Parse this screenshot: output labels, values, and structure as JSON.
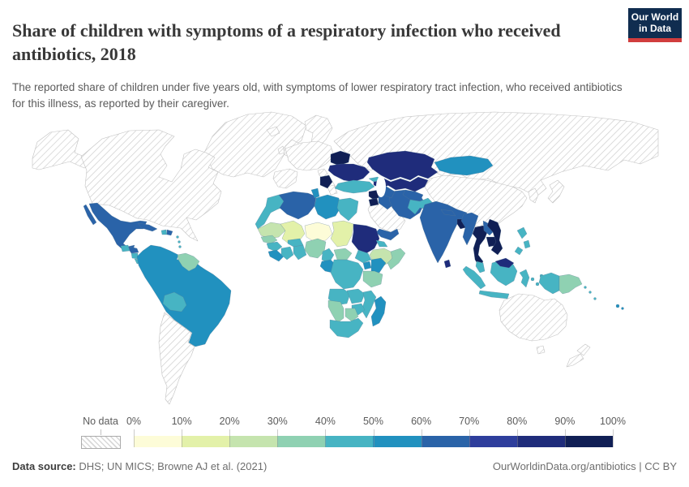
{
  "header": {
    "title": "Share of children with symptoms of a respiratory infection who received antibiotics, 2018",
    "subtitle": "The reported share of children under five years old, with symptoms of lower respiratory tract infection, who received antibiotics for this illness, as reported by their caregiver.",
    "logo": {
      "line1": "Our World",
      "line2": "in Data",
      "bg_color": "#102d50",
      "accent_color": "#d13d3d"
    }
  },
  "chart_data": {
    "type": "choropleth_map",
    "title": "Share of children with symptoms of a respiratory infection who received antibiotics",
    "year": "2018",
    "legend": {
      "no_data_label": "No data",
      "tick_labels": [
        "0%",
        "10%",
        "20%",
        "30%",
        "40%",
        "50%",
        "60%",
        "70%",
        "80%",
        "90%",
        "100%"
      ],
      "bin_ranges": [
        "0-10%",
        "10-20%",
        "20-30%",
        "30-40%",
        "40-50%",
        "50-60%",
        "60-70%",
        "70-80%",
        "80-90%",
        "90-100%"
      ],
      "bin_colors": [
        "#fdfcd8",
        "#e3f1a9",
        "#c5e4ae",
        "#8fd1b2",
        "#47b4c3",
        "#2191bf",
        "#2a63a8",
        "#2e3e9c",
        "#1f2c7b",
        "#101f55"
      ]
    },
    "regions": {
      "greenland": "no_data",
      "north-america": "no_data",
      "mexico": 6,
      "guatemala-belize": 4,
      "honduras": 6,
      "nicaragua": 4,
      "costa-rica": 4,
      "panama": 9,
      "cuba": 6,
      "haiti": 4,
      "dominican-republic": 6,
      "lesser-antilles": 4,
      "south-america": 5,
      "guianas": 3,
      "bolivia": 4,
      "argentina-chile": "no_data",
      "europe": "no_data",
      "russia": "no_data",
      "belarus": 9,
      "ukraine": 8,
      "balkans": 9,
      "turkey": 4,
      "georgia": 4,
      "azerbaijan-armenia": 8,
      "syria": 9,
      "jordan": 9,
      "iraq": 6,
      "iran": 6,
      "saudi-arabia": "no_data",
      "yemen": 6,
      "kazakhstan": 8,
      "uzbekistan": 8,
      "turkmenistan": 6,
      "mongolia": 5,
      "china": "no_data",
      "korea": "no_data",
      "japan": "no_data",
      "afghanistan": 6,
      "pakistan": 4,
      "india": 6,
      "nepal": 6,
      "bangladesh": 9,
      "sri-lanka": 8,
      "myanmar": 6,
      "thailand": 9,
      "laos": 6,
      "cambodia": 9,
      "vietnam": 9,
      "malaysia": 4,
      "indonesia": 4,
      "borneo-malaysia": 8,
      "philippines": 4,
      "papua-new-guinea": 3,
      "solomon-islands": 4,
      "fiji": 5,
      "australia": "no_data",
      "new-zealand": "no_data",
      "madagascar": 5,
      "morocco": 4,
      "algeria": 6,
      "tunisia": 5,
      "libya": 5,
      "egypt": 4,
      "mauritania": 2,
      "mali": 1,
      "niger": 0,
      "chad": 1,
      "sudan": 8,
      "eritrea": 4,
      "ethiopia": 2,
      "somalia": 3,
      "senegal": 3,
      "guinea": 4,
      "sierra-leone-liberia": 5,
      "cote-divoire": 4,
      "burkina-faso": 4,
      "ghana": 4,
      "nigeria": 3,
      "cameroon": 4,
      "central-african-republic": 3,
      "south-sudan": 4,
      "gabon-congo": 5,
      "drc": 4,
      "uganda": 5,
      "kenya": 5,
      "tanzania": 3,
      "angola": 4,
      "zambia": 4,
      "mozambique": 4,
      "zimbabwe": 4,
      "botswana": 3,
      "namibia": 3,
      "south-africa": 4
    }
  },
  "footer": {
    "source_label": "Data source:",
    "source_text": " DHS; UN MICS; Browne AJ et al. (2021)",
    "link_text": "OurWorldinData.org/antibiotics",
    "license_suffix": " | CC BY"
  }
}
